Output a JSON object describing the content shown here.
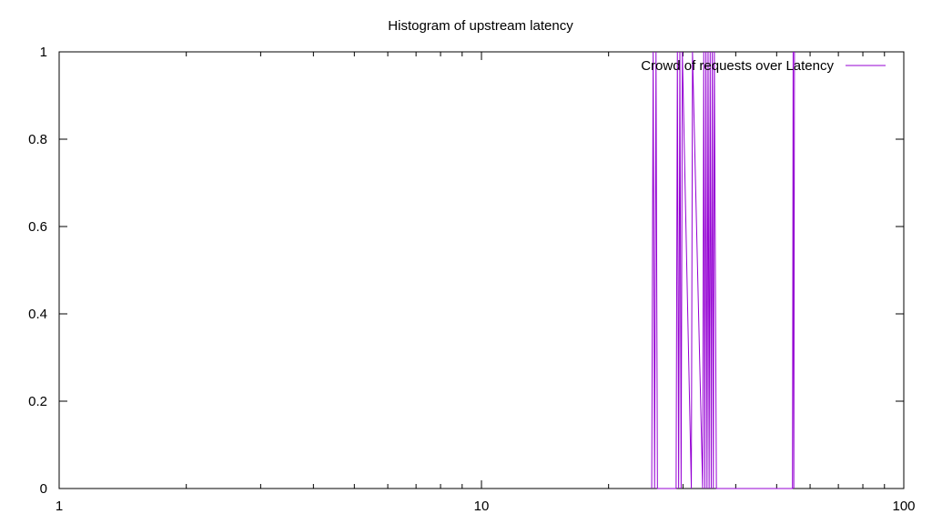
{
  "chart_data": {
    "type": "line",
    "title": "Histogram of upstream latency",
    "xlabel": "",
    "ylabel": "",
    "x_scale": "log",
    "xlim": [
      1,
      100
    ],
    "ylim": [
      0,
      1
    ],
    "x_ticks": [
      {
        "value": 1,
        "label": "1"
      },
      {
        "value": 10,
        "label": "10"
      },
      {
        "value": 100,
        "label": "100"
      }
    ],
    "y_ticks": [
      {
        "value": 0,
        "label": "0"
      },
      {
        "value": 0.2,
        "label": "0.2"
      },
      {
        "value": 0.4,
        "label": "0.4"
      },
      {
        "value": 0.6,
        "label": "0.6"
      },
      {
        "value": 0.8,
        "label": "0.8"
      },
      {
        "value": 1,
        "label": "1"
      }
    ],
    "grid": false,
    "legend_position": "top-right",
    "series": [
      {
        "name": "Crowd of requests over Latency",
        "color": "#9400d3",
        "x": [
          25.3,
          25.5,
          25.7,
          25.9,
          26.1,
          28.9,
          29.1,
          29.3,
          29.5,
          29.7,
          29.9,
          31.4,
          31.6,
          33.4,
          33.6,
          33.8,
          34.0,
          34.2,
          34.4,
          34.6,
          34.8,
          35.0,
          35.2,
          35.4,
          35.6,
          36.0,
          36.2,
          54.5,
          54.7,
          54.9,
          55.1
        ],
        "y": [
          0,
          1,
          0,
          1,
          0,
          0,
          1,
          0,
          1,
          0,
          1,
          0,
          1,
          0,
          1,
          0,
          1,
          0,
          1,
          0,
          1,
          0,
          1,
          0,
          1,
          0,
          0,
          0,
          1,
          0,
          1
        ]
      }
    ]
  }
}
